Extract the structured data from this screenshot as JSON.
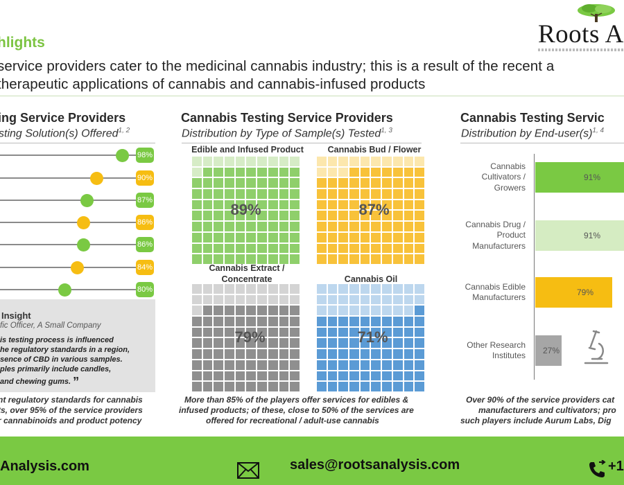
{
  "logo": {
    "text": "Roots A"
  },
  "highlights": {
    "title": "hlights",
    "line1": "service  providers cater to the medicinal cannabis industry; this is a result of the recent a",
    "line2": "therapeutic applications of cannabis and cannabis-infused products"
  },
  "left_panel": {
    "title": "ing Service Providers",
    "subtitle": "sting Solution(s) Offered",
    "subtitle_refs": "1, 2",
    "rows": [
      {
        "value": 98,
        "label": "98%",
        "color": "#7ac943"
      },
      {
        "value": 90,
        "label": "90%",
        "color": "#f6bd12"
      },
      {
        "value": 87,
        "label": "87%",
        "color": "#7ac943"
      },
      {
        "value": 86,
        "label": "86%",
        "color": "#f6bd12"
      },
      {
        "value": 86,
        "label": "86%",
        "color": "#7ac943"
      },
      {
        "value": 84,
        "label": "84%",
        "color": "#f6bd12"
      },
      {
        "value": 80,
        "label": "80%",
        "color": "#7ac943"
      }
    ],
    "insight": {
      "label": "Insight",
      "role": "fic Officer, A Small Company",
      "quote": [
        "is testing process is influenced",
        "he regulatory standards in a region,",
        "sence of CBD in various samples.",
        "ples primarily include candles,",
        " and chewing gums."
      ]
    },
    "footnote": [
      "nt  regulatory standards  for cannabis",
      "ts,  over 95% of the service providers",
      "r cannabinoids and product potency"
    ]
  },
  "middle_panel": {
    "title": "Cannabis Testing Service Providers",
    "subtitle": "Distribution by Type of Sample(s) Tested",
    "subtitle_refs": "1, 3",
    "waffles": [
      {
        "title": "Edible and Infused Product",
        "value": 89,
        "label": "89%",
        "fill": "#8fcf6b",
        "empty": "#d6ecc6"
      },
      {
        "title": "Cannabis Bud / Flower",
        "value": 87,
        "label": "87%",
        "fill": "#f8c23a",
        "empty": "#fce7ad"
      },
      {
        "title": "Cannabis Extract / Concentrate",
        "value": 79,
        "label": "79%",
        "fill": "#8f8f8f",
        "empty": "#d4d4d4"
      },
      {
        "title": "Cannabis Oil",
        "value": 71,
        "label": "71%",
        "fill": "#5b9bd5",
        "empty": "#bdd7ee"
      }
    ],
    "footnote": [
      "More than 85% of the players  offer services for edibles &",
      "infused products;  of these,  close  to 50%  of  the services  are",
      "offered  for recreational  / adult-use  cannabis"
    ]
  },
  "right_panel": {
    "title": "Cannabis Testing Servic",
    "subtitle": "Distribution by End-user(s)",
    "subtitle_refs": "1, 4",
    "bars": [
      {
        "label": [
          "Cannabis",
          "Cultivators /",
          "Growers"
        ],
        "value": 91,
        "value_label": "91%",
        "color": "#7ac943"
      },
      {
        "label": [
          "Cannabis  Drug /",
          "Product",
          "Manufacturers"
        ],
        "value": 91,
        "value_label": "91%",
        "color": "#d5ecc2"
      },
      {
        "label": [
          "Cannabis  Edible",
          "Manufacturers"
        ],
        "value": 79,
        "value_label": "79%",
        "color": "#f6bd12"
      },
      {
        "label": [
          "Other Research",
          "Institutes"
        ],
        "value": 27,
        "value_label": "27%",
        "color": "#a6a6a6"
      }
    ],
    "footnote": [
      "Over 90% of the service providers cat",
      "manufacturers  and cultivators;  pro",
      "such players include Aurum Labs,  Dig"
    ]
  },
  "footer": {
    "website": "Analysis.com",
    "email": "sales@rootsanalysis.com",
    "phone": "+1",
    "bg": "#7ac943"
  }
}
